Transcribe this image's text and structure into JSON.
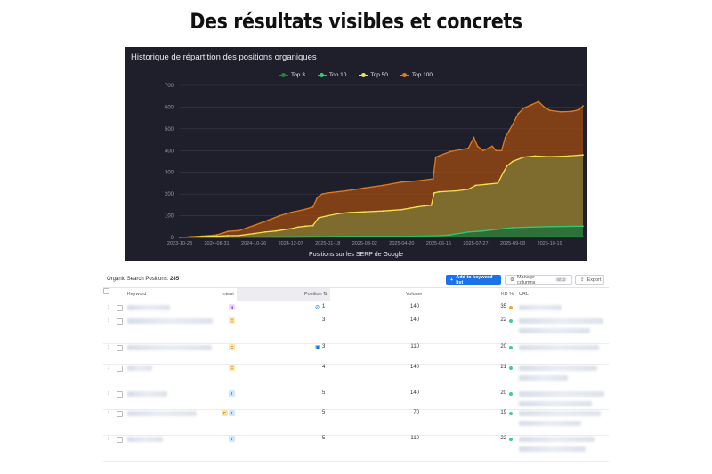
{
  "headline": "Des résultats visibles et concrets",
  "chart_data": {
    "type": "area",
    "title": "Historique de répartition des positions organiques",
    "xlabel": "Positions sur les SERP de Google",
    "ylabel": "",
    "ylim": [
      0,
      700
    ],
    "yticks": [
      0,
      100,
      200,
      300,
      400,
      500,
      600,
      700
    ],
    "xticks": [
      "2023-10-23",
      "2024-08-31",
      "2024-10-26",
      "2024-12-07",
      "2025-01-18",
      "2025-03-02",
      "2025-04-20",
      "2025-06-15",
      "2025-07-27",
      "2025-09-08",
      "2025-10-19"
    ],
    "x_range": [
      0,
      10.9
    ],
    "grid": true,
    "legend_position": "top-center",
    "series": [
      {
        "name": "Top 3",
        "color": "#1e8a2e",
        "points": [
          [
            0,
            0
          ],
          [
            1,
            0
          ],
          [
            2,
            1
          ],
          [
            3,
            1
          ],
          [
            4,
            2
          ],
          [
            5,
            2
          ],
          [
            6,
            2
          ],
          [
            7,
            3
          ],
          [
            8,
            3
          ],
          [
            9,
            3
          ],
          [
            10,
            4
          ],
          [
            10.9,
            4
          ]
        ]
      },
      {
        "name": "Top 10",
        "color": "#2ecc71",
        "points": [
          [
            0,
            0
          ],
          [
            1,
            0
          ],
          [
            2,
            2
          ],
          [
            3,
            3
          ],
          [
            4,
            4
          ],
          [
            5,
            5
          ],
          [
            5.5,
            5
          ],
          [
            6,
            5
          ],
          [
            6.5,
            6
          ],
          [
            7,
            8
          ],
          [
            7.3,
            12
          ],
          [
            7.8,
            25
          ],
          [
            8.2,
            30
          ],
          [
            8.6,
            38
          ],
          [
            9,
            45
          ],
          [
            9.5,
            48
          ],
          [
            10,
            50
          ],
          [
            10.9,
            52
          ]
        ]
      },
      {
        "name": "Top 50",
        "color": "#f2e24b",
        "points": [
          [
            0,
            0
          ],
          [
            0.3,
            2
          ],
          [
            0.6,
            4
          ],
          [
            1,
            6
          ],
          [
            1.3,
            8
          ],
          [
            1.6,
            9
          ],
          [
            2,
            18
          ],
          [
            2.3,
            25
          ],
          [
            2.6,
            30
          ],
          [
            3,
            40
          ],
          [
            3.2,
            48
          ],
          [
            3.4,
            52
          ],
          [
            3.6,
            55
          ],
          [
            3.75,
            90
          ],
          [
            4,
            100
          ],
          [
            4.3,
            110
          ],
          [
            4.6,
            115
          ],
          [
            5,
            118
          ],
          [
            5.5,
            122
          ],
          [
            6,
            128
          ],
          [
            6.4,
            140
          ],
          [
            6.6,
            145
          ],
          [
            6.8,
            148
          ],
          [
            6.88,
            205
          ],
          [
            7,
            210
          ],
          [
            7.5,
            215
          ],
          [
            7.8,
            222
          ],
          [
            8,
            240
          ],
          [
            8.3,
            245
          ],
          [
            8.6,
            250
          ],
          [
            8.75,
            300
          ],
          [
            8.85,
            330
          ],
          [
            9,
            350
          ],
          [
            9.3,
            370
          ],
          [
            9.6,
            375
          ],
          [
            10,
            372
          ],
          [
            10.5,
            375
          ],
          [
            10.9,
            380
          ]
        ]
      },
      {
        "name": "Top 100",
        "color": "#e07b1f",
        "points": [
          [
            0,
            0
          ],
          [
            0.3,
            3
          ],
          [
            0.6,
            6
          ],
          [
            1,
            12
          ],
          [
            1.3,
            28
          ],
          [
            1.6,
            32
          ],
          [
            2,
            55
          ],
          [
            2.4,
            80
          ],
          [
            2.7,
            100
          ],
          [
            3,
            115
          ],
          [
            3.4,
            130
          ],
          [
            3.6,
            140
          ],
          [
            3.72,
            185
          ],
          [
            3.85,
            200
          ],
          [
            4,
            205
          ],
          [
            4.5,
            215
          ],
          [
            5,
            228
          ],
          [
            5.5,
            240
          ],
          [
            6,
            255
          ],
          [
            6.5,
            262
          ],
          [
            6.85,
            270
          ],
          [
            6.92,
            370
          ],
          [
            7,
            375
          ],
          [
            7.3,
            395
          ],
          [
            7.6,
            405
          ],
          [
            7.8,
            410
          ],
          [
            7.95,
            460
          ],
          [
            8.05,
            420
          ],
          [
            8.2,
            400
          ],
          [
            8.45,
            420
          ],
          [
            8.55,
            400
          ],
          [
            8.7,
            400
          ],
          [
            8.8,
            460
          ],
          [
            8.9,
            490
          ],
          [
            9,
            520
          ],
          [
            9.15,
            570
          ],
          [
            9.3,
            595
          ],
          [
            9.5,
            610
          ],
          [
            9.7,
            625
          ],
          [
            9.85,
            600
          ],
          [
            10,
            585
          ],
          [
            10.3,
            578
          ],
          [
            10.6,
            580
          ],
          [
            10.8,
            588
          ],
          [
            10.9,
            605
          ]
        ]
      }
    ]
  },
  "table": {
    "label": "Organic Search Positions:",
    "count": "245",
    "buttons": {
      "add": "Add to keyword list",
      "manage": "Manage columns",
      "manage_count": "8/12",
      "export": "Export"
    },
    "columns": [
      "Keyword",
      "Intent",
      "Position",
      "Volume",
      "KD %",
      "URL"
    ],
    "rows": [
      {
        "intent": [
          "N"
        ],
        "icon": "link-icon",
        "position": "1",
        "volume": "140",
        "kd": "35",
        "kd_color": "#f5a623"
      },
      {
        "intent": [
          "C"
        ],
        "icon": "",
        "position": "3",
        "volume": "140",
        "kd": "22",
        "kd_color": "#3ccf8e"
      },
      {
        "intent": [
          "C"
        ],
        "icon": "image-icon",
        "position": "3",
        "volume": "110",
        "kd": "20",
        "kd_color": "#3ccf8e"
      },
      {
        "intent": [
          "C"
        ],
        "icon": "",
        "position": "4",
        "volume": "140",
        "kd": "21",
        "kd_color": "#3ccf8e"
      },
      {
        "intent": [
          "I"
        ],
        "icon": "",
        "position": "5",
        "volume": "140",
        "kd": "20",
        "kd_color": "#3ccf8e"
      },
      {
        "intent": [
          "C",
          "I"
        ],
        "icon": "",
        "position": "5",
        "volume": "70",
        "kd": "19",
        "kd_color": "#3ccf8e"
      },
      {
        "intent": [
          "I"
        ],
        "icon": "",
        "position": "5",
        "volume": "110",
        "kd": "22",
        "kd_color": "#3ccf8e"
      }
    ]
  }
}
